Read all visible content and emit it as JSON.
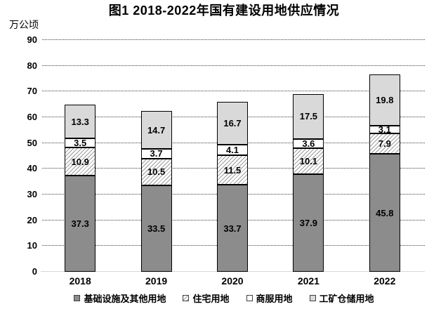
{
  "chart_data": {
    "type": "bar",
    "stacked": true,
    "title": "图1 2018-2022年国有建设用地供应情况",
    "unit_label": "万公顷",
    "categories": [
      "2018",
      "2019",
      "2020",
      "2021",
      "2022"
    ],
    "series": [
      {
        "name": "基础设施及其他用地",
        "style": "solid-dark",
        "color": "#8c8c8c",
        "values": [
          37.3,
          33.5,
          33.7,
          37.9,
          45.8
        ]
      },
      {
        "name": "住宅用地",
        "style": "hatch",
        "color": "#ffffff",
        "values": [
          10.9,
          10.5,
          11.5,
          10.1,
          7.9
        ]
      },
      {
        "name": "商服用地",
        "style": "plain-white",
        "color": "#ffffff",
        "values": [
          3.5,
          3.7,
          4.1,
          3.6,
          3.1
        ]
      },
      {
        "name": "工矿仓储用地",
        "style": "solid-light",
        "color": "#d9d9d9",
        "values": [
          13.3,
          14.7,
          16.7,
          17.5,
          19.8
        ]
      }
    ],
    "totals": [
      65.0,
      62.4,
      66.0,
      69.1,
      76.6
    ],
    "ylim": [
      0,
      90
    ],
    "yticks": [
      0,
      10,
      20,
      30,
      40,
      50,
      60,
      70,
      80,
      90
    ],
    "grid": "horizontal-dotted",
    "legend_position": "bottom",
    "bar_border_color": "#000000",
    "gridline_color": "#404040",
    "baseline_color": "#d6d6d6",
    "value_label_decimals": 1
  }
}
